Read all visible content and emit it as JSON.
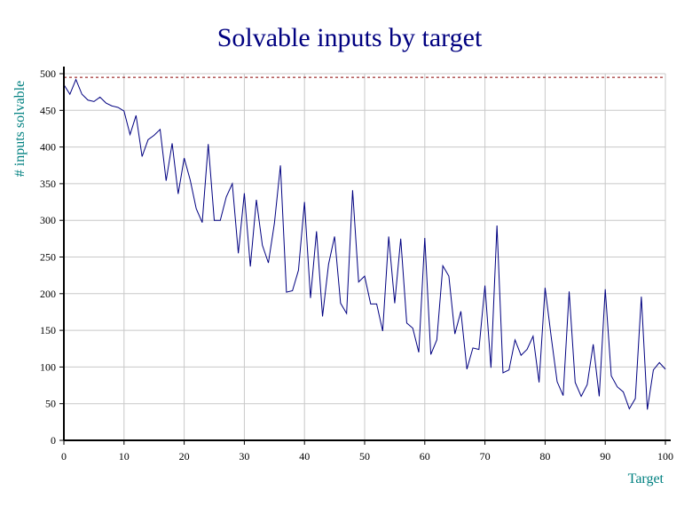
{
  "chart_data": {
    "type": "line",
    "title": "Solvable inputs by target",
    "xlabel": "Target",
    "ylabel": "# inputs solvable",
    "xlim": [
      0,
      100
    ],
    "ylim": [
      0,
      500
    ],
    "x_ticks": [
      "0",
      "10",
      "20",
      "30",
      "40",
      "50",
      "60",
      "70",
      "80",
      "90",
      "100"
    ],
    "y_ticks": [
      "0",
      "50",
      "100",
      "150",
      "200",
      "250",
      "300",
      "350",
      "400",
      "450",
      "500"
    ],
    "grid": true,
    "reference_line": {
      "y": 495,
      "style": "dashed",
      "color": "#8b0000"
    },
    "colors": {
      "series": "#000080",
      "title": "#000080",
      "axis_title": "#008080",
      "grid": "#c8c8c8"
    },
    "series": [
      {
        "x": [
          0,
          1,
          2,
          3,
          4,
          5,
          6,
          7,
          8,
          9,
          10,
          11,
          12,
          13,
          14,
          15,
          16,
          17,
          18,
          19,
          20,
          21,
          22,
          23,
          24,
          25,
          26,
          27,
          28,
          29,
          30,
          31,
          32,
          33,
          34,
          35,
          36,
          37,
          38,
          39,
          40,
          41,
          42,
          43,
          44,
          45,
          46,
          47,
          48,
          49,
          50,
          51,
          52,
          53,
          54,
          55,
          56,
          57,
          58,
          59,
          60,
          61,
          62,
          63,
          64,
          65,
          66,
          67,
          68,
          69,
          70,
          71,
          72,
          73,
          74,
          75,
          76,
          77,
          78,
          79,
          80,
          81,
          82,
          83,
          84,
          85,
          86,
          87,
          88,
          89,
          90,
          91,
          92,
          93,
          94,
          95,
          96,
          97,
          98,
          99,
          100
        ],
        "values": [
          485,
          472,
          492,
          472,
          464,
          462,
          468,
          460,
          456,
          454,
          449,
          417,
          443,
          387,
          410,
          416,
          424,
          354,
          405,
          336,
          385,
          355,
          316,
          297,
          404,
          300,
          300,
          332,
          350,
          255,
          337,
          237,
          328,
          266,
          242,
          296,
          375,
          202,
          204,
          232,
          325,
          194,
          285,
          169,
          240,
          278,
          187,
          173,
          341,
          216,
          224,
          186,
          186,
          149,
          278,
          187,
          275,
          160,
          153,
          120,
          276,
          117,
          137,
          238,
          224,
          145,
          176,
          97,
          126,
          124,
          211,
          99,
          293,
          92,
          96,
          137,
          116,
          124,
          142,
          79,
          208,
          142,
          80,
          61,
          203,
          79,
          60,
          76,
          131,
          60,
          206,
          88,
          73,
          66,
          43,
          57,
          196,
          42,
          96,
          106,
          97
        ]
      }
    ]
  }
}
